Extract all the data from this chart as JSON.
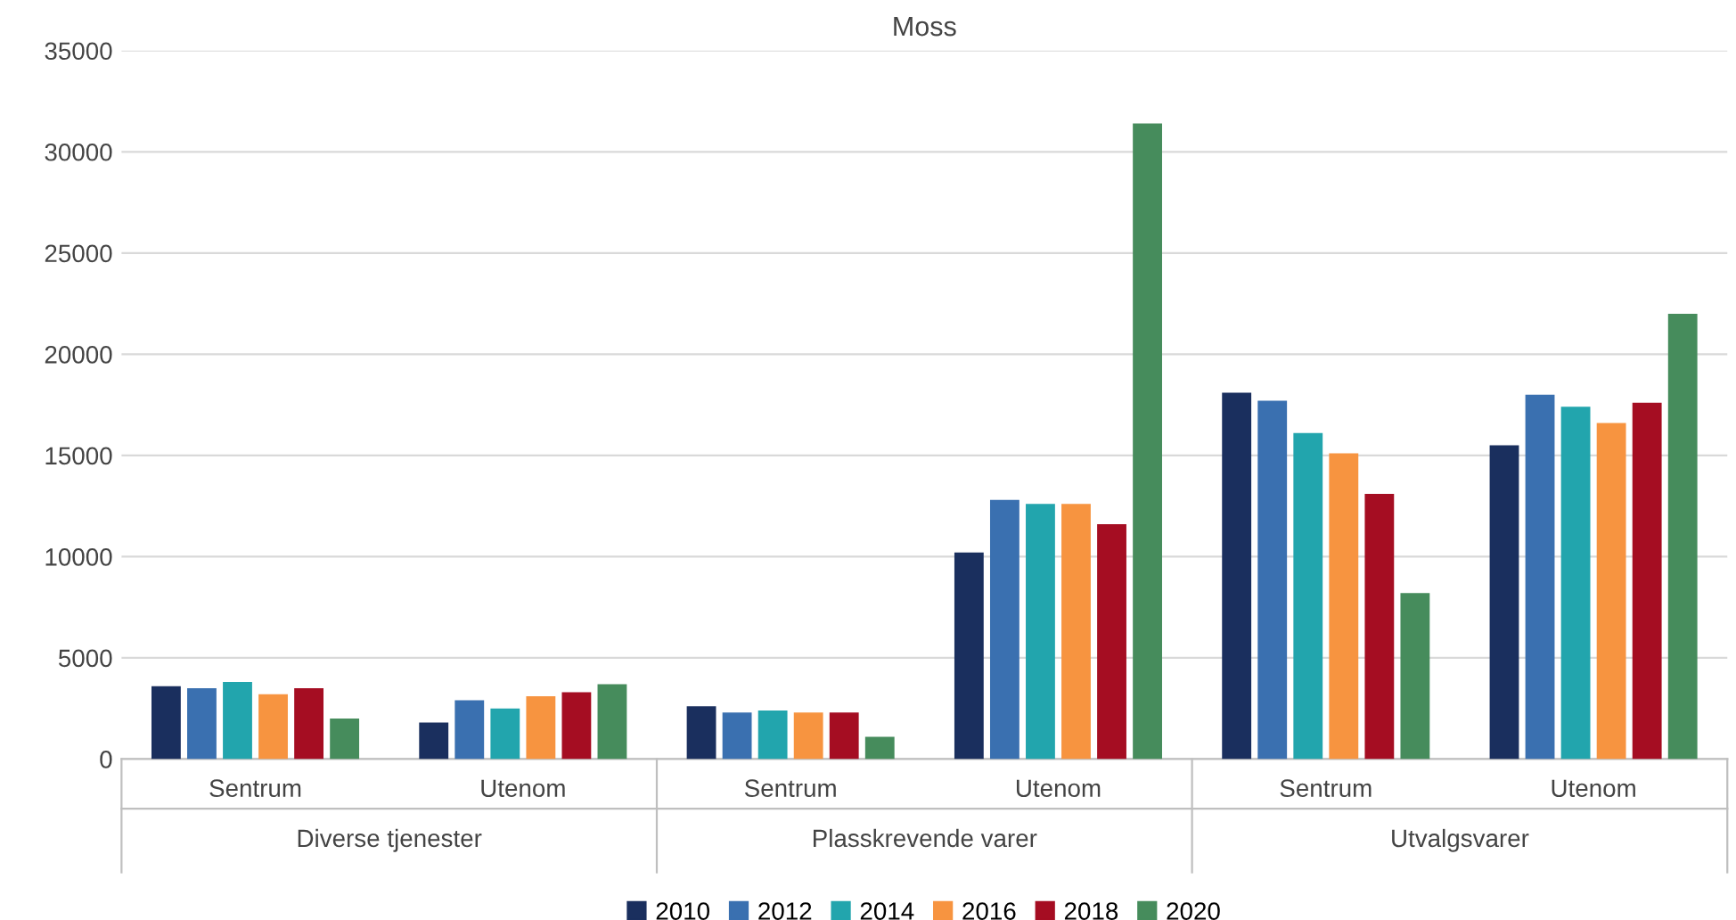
{
  "chart_data": {
    "type": "bar",
    "title": "Moss",
    "categories": [
      "Sentrum",
      "Utenom",
      "Sentrum",
      "Utenom",
      "Sentrum",
      "Utenom"
    ],
    "annotations": [
      "Diverse tjenester",
      "Plasskrevende varer",
      "Utvalgsvarer"
    ],
    "series": [
      {
        "name": "2010",
        "color": "#1a2f5e",
        "values": [
          3600,
          1800,
          2600,
          10200,
          18100,
          15500
        ]
      },
      {
        "name": "2012",
        "color": "#3a70b0",
        "values": [
          3500,
          2900,
          2300,
          12800,
          17700,
          18000
        ]
      },
      {
        "name": "2014",
        "color": "#22a5ad",
        "values": [
          3800,
          2500,
          2400,
          12600,
          16100,
          17400
        ]
      },
      {
        "name": "2016",
        "color": "#f79440",
        "values": [
          3200,
          3100,
          2300,
          12600,
          15100,
          16600
        ]
      },
      {
        "name": "2018",
        "color": "#a50d22",
        "values": [
          3500,
          3300,
          2300,
          11600,
          13100,
          17600
        ]
      },
      {
        "name": "2020",
        "color": "#468c5c",
        "values": [
          2000,
          3700,
          1100,
          31400,
          8200,
          22000
        ]
      }
    ],
    "ylim": [
      0,
      35000
    ],
    "yticks": [
      0,
      5000,
      10000,
      15000,
      20000,
      25000,
      30000,
      35000
    ],
    "grid": "y",
    "legend": "bottom"
  }
}
